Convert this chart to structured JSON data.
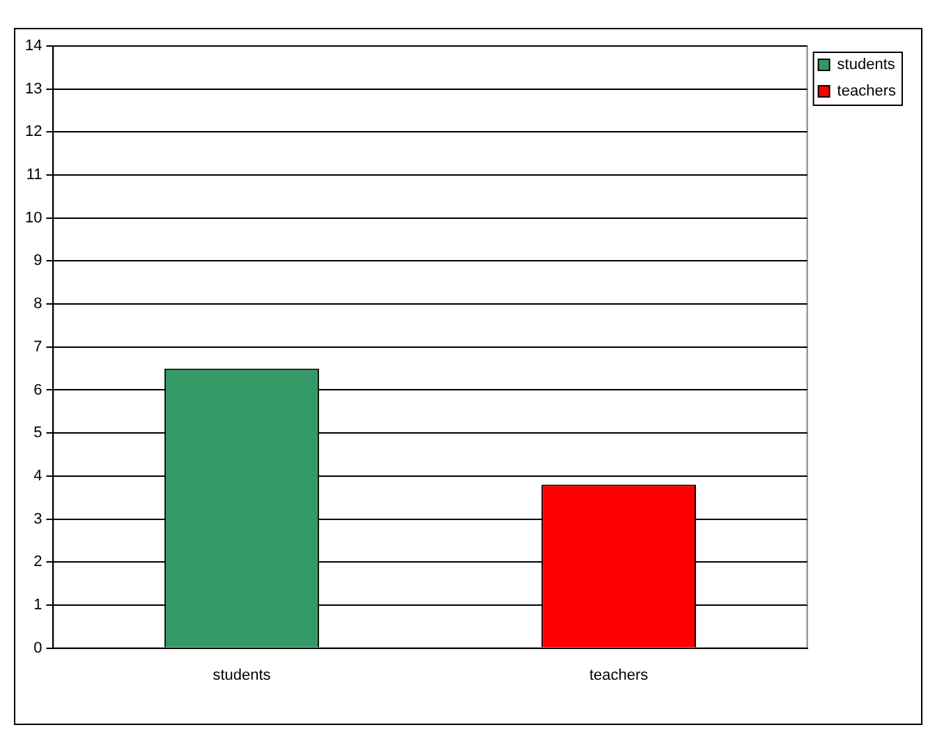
{
  "chart_data": {
    "type": "bar",
    "categories": [
      "students",
      "teachers"
    ],
    "series": [
      {
        "name": "students",
        "color": "#339966",
        "values": [
          6.5,
          null
        ]
      },
      {
        "name": "teachers",
        "color": "#ff0000",
        "values": [
          null,
          3.8
        ]
      }
    ],
    "ylim": [
      0,
      14
    ],
    "yticks": [
      0,
      1,
      2,
      3,
      4,
      5,
      6,
      7,
      8,
      9,
      10,
      11,
      12,
      13,
      14
    ],
    "grid": "y",
    "legend": "top right"
  }
}
